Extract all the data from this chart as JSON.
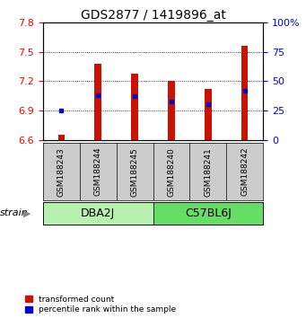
{
  "title": "GDS2877 / 1419896_at",
  "samples": [
    "GSM188243",
    "GSM188244",
    "GSM188245",
    "GSM188240",
    "GSM188241",
    "GSM188242"
  ],
  "groups": [
    "DBA2J",
    "DBA2J",
    "DBA2J",
    "C57BL6J",
    "C57BL6J",
    "C57BL6J"
  ],
  "group_labels": [
    "DBA2J",
    "C57BL6J"
  ],
  "group_colors_light": [
    "#B8F0B0",
    "#66DD66"
  ],
  "transformed_counts": [
    6.65,
    7.38,
    7.28,
    7.2,
    7.12,
    7.56
  ],
  "percentile_ranks": [
    25,
    38,
    37,
    33,
    30,
    42
  ],
  "ylim_left": [
    6.6,
    7.8
  ],
  "ylim_right": [
    0,
    100
  ],
  "yticks_left": [
    6.6,
    6.9,
    7.2,
    7.5,
    7.8
  ],
  "yticks_right": [
    0,
    25,
    50,
    75,
    100
  ],
  "bar_bottom": 6.6,
  "bar_color": "#CC1100",
  "dot_color": "#0000CC",
  "bar_width": 0.18,
  "title_fontsize": 10,
  "tick_fontsize": 8,
  "sample_fontsize": 6.5,
  "group_label_fontsize": 9
}
